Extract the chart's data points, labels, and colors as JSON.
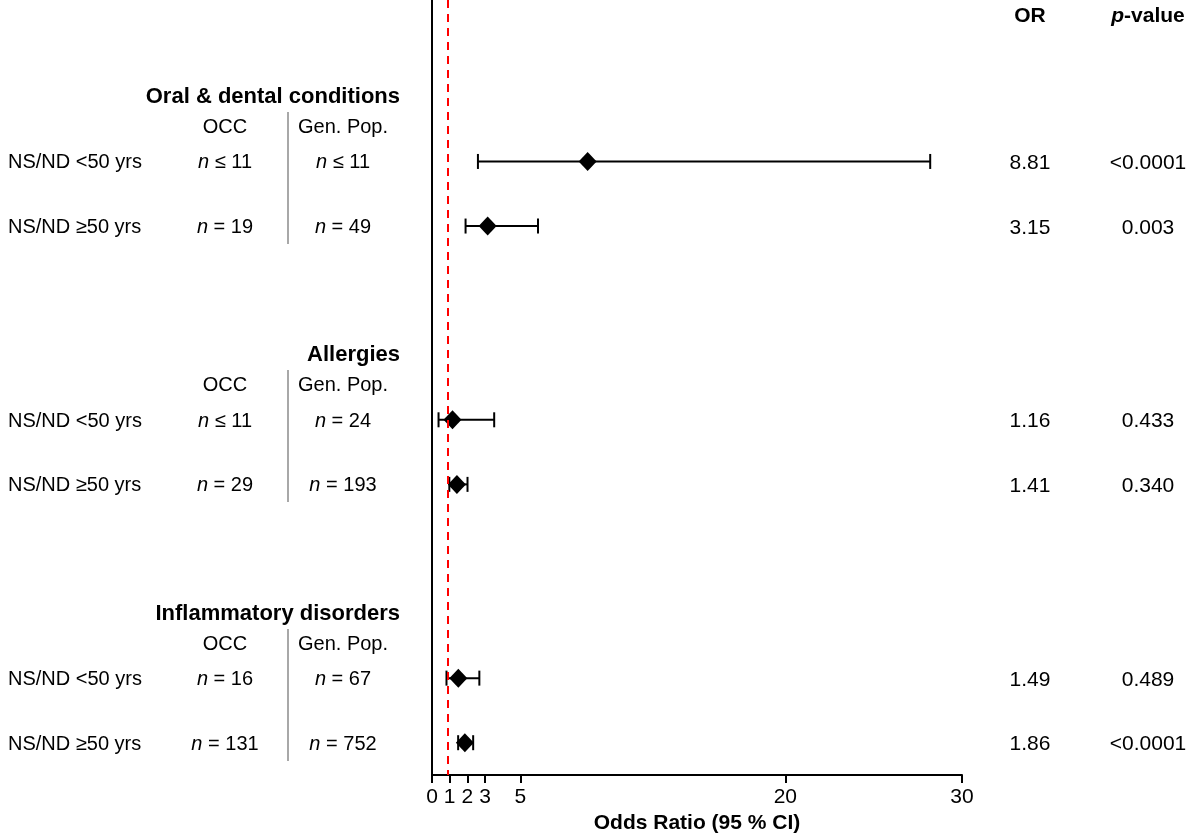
{
  "chart_data": {
    "type": "scatter",
    "orientation": "horizontal",
    "categories": [
      null,
      null,
      null,
      null,
      null,
      null,
      null,
      null,
      null,
      null,
      null,
      null
    ],
    "values": [
      null,
      null,
      8.81,
      3.15,
      null,
      null,
      1.16,
      1.41,
      null,
      null,
      1.49,
      1.86
    ],
    "errors": [
      null,
      null,
      [
        2.6,
        28.2
      ],
      [
        1.9,
        6
      ],
      null,
      null,
      [
        0.37,
        3.52
      ],
      [
        0.98,
        2.01
      ],
      null,
      null,
      [
        0.82,
        2.68
      ],
      [
        1.48,
        2.33
      ]
    ],
    "color": "#000000",
    "marker": "diamond",
    "xlim": [
      0,
      30
    ],
    "xticks": [
      0,
      1,
      2,
      3,
      5,
      20,
      30
    ],
    "xlabel": "Odds Ratio (95 % CI)",
    "ref_lines": [
      {
        "axis": "x",
        "value": 1,
        "color": "#ff0000",
        "line_style": "dashed"
      }
    ],
    "annotations": [
      "OR",
      "p-value",
      "Oral & dental conditions",
      "OCC",
      "Gen. Pop.",
      "NS/ND <50 yrs",
      "n ≤ 11",
      "n ≤ 11",
      "8.81",
      "<0.0001",
      "NS/ND ≥50 yrs",
      "n = 19",
      "n = 49",
      "3.15",
      "0.003",
      "Allergies",
      "OCC",
      "Gen. Pop.",
      "NS/ND <50 yrs",
      "n ≤ 11",
      "n = 24",
      "1.16",
      "0.433",
      "NS/ND ≥50 yrs",
      "n = 29",
      "n = 193",
      "1.41",
      "0.340",
      "Inflammatory disorders",
      "OCC",
      "Gen. Pop.",
      "NS/ND <50 yrs",
      "n = 16",
      "n = 67",
      "1.49",
      "0.489",
      "NS/ND ≥50 yrs",
      "n = 131",
      "n = 752",
      "1.86",
      "<0.0001"
    ]
  }
}
